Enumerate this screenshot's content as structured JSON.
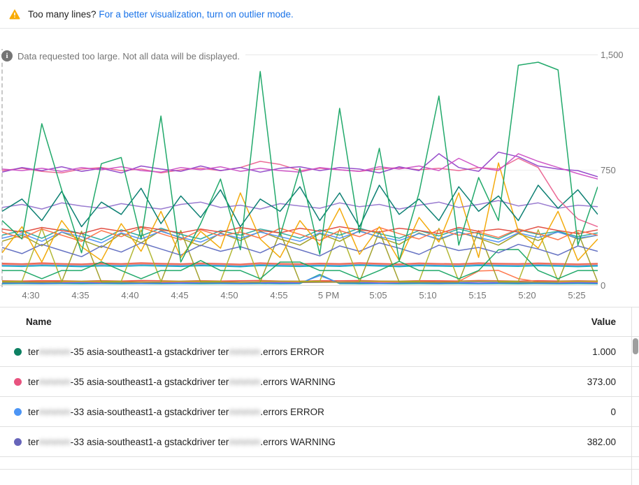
{
  "banner": {
    "warning_text": "Too many lines?",
    "link_text": "For a better visualization, turn on outlier mode.",
    "warning_color": "#F9AB00"
  },
  "chart": {
    "info_text": "Data requested too large. Not all data will be displayed.",
    "y_ticks": [
      {
        "label": "0",
        "value": 0
      },
      {
        "label": "750",
        "value": 750
      },
      {
        "label": "1,500",
        "value": 1500
      }
    ],
    "x_ticks": [
      "4:30",
      "4:35",
      "4:40",
      "4:45",
      "4:50",
      "4:55",
      "5 PM",
      "5:05",
      "5:10",
      "5:15",
      "5:20",
      "5:25"
    ]
  },
  "chart_data": {
    "type": "line",
    "title": "",
    "xlabel": "",
    "ylabel": "",
    "ylim": [
      0,
      1500
    ],
    "x_range": [
      "4:27",
      "5:27"
    ],
    "grid": true,
    "legend_position": "table-below",
    "series": [
      {
        "name": "",
        "color": "#5C85DE",
        "values": [
          132,
          128,
          134,
          130,
          127,
          133,
          129,
          135,
          131,
          128,
          133,
          130,
          126,
          134,
          130,
          128,
          132,
          129,
          135,
          131,
          127,
          133,
          130,
          128,
          134,
          131,
          129,
          133,
          130,
          127,
          131
        ]
      },
      {
        "name": "",
        "color": "#E5493D",
        "values": [
          142,
          138,
          144,
          140,
          137,
          143,
          139,
          145,
          141,
          138,
          143,
          140,
          136,
          144,
          140,
          138,
          142,
          139,
          145,
          141,
          137,
          143,
          140,
          138,
          144,
          141,
          139,
          143,
          140,
          137,
          141
        ]
      },
      {
        "name": "",
        "color": "#00ACC1",
        "values": [
          124,
          121,
          126,
          123,
          120,
          125,
          122,
          127,
          124,
          121,
          126,
          123,
          119,
          127,
          123,
          121,
          125,
          122,
          128,
          124,
          120,
          126,
          123,
          121,
          127,
          124,
          122,
          126,
          123,
          120,
          124
        ]
      },
      {
        "name": "",
        "color": "#FB8C6A",
        "values": [
          136,
          133,
          138,
          135,
          132,
          137,
          134,
          139,
          136,
          133,
          138,
          135,
          131,
          139,
          135,
          133,
          137,
          134,
          140,
          136,
          132,
          138,
          135,
          133,
          139,
          136,
          134,
          138,
          135,
          132,
          136
        ]
      },
      {
        "name": "",
        "color": "#7E57C2",
        "values": [
          18,
          18,
          17,
          19,
          18,
          17,
          19,
          18,
          17,
          18,
          19,
          17,
          18,
          19,
          18,
          17,
          18,
          19,
          17,
          18,
          19,
          18,
          17,
          18,
          19,
          18,
          17,
          19,
          18,
          17,
          18
        ]
      },
      {
        "name": "",
        "color": "#E5493D",
        "values": [
          28,
          27,
          29,
          28,
          26,
          29,
          27,
          30,
          28,
          26,
          29,
          27,
          28,
          30,
          27,
          26,
          29,
          28,
          30,
          27,
          26,
          29,
          28,
          27,
          30,
          28,
          26,
          29,
          27,
          28,
          27
        ]
      },
      {
        "name": "",
        "color": "#26A69A",
        "values": [
          8,
          9,
          8,
          9,
          8,
          9,
          8,
          9,
          8,
          9,
          8,
          9,
          8,
          9,
          8,
          9,
          70,
          9,
          8,
          9,
          8,
          9,
          8,
          9,
          8,
          9,
          8,
          9,
          8,
          9,
          8
        ]
      },
      {
        "name": "",
        "color": "#4285F4",
        "values": [
          13,
          14,
          11,
          13,
          15,
          12,
          14,
          11,
          13,
          12,
          15,
          13,
          11,
          14,
          12,
          13,
          62,
          14,
          14,
          11,
          13,
          15,
          12,
          14,
          11,
          13,
          15,
          13,
          12,
          14,
          12
        ]
      },
      {
        "name": "",
        "color": "#FF7043",
        "values": [
          22,
          20,
          24,
          21,
          23,
          20,
          24,
          22,
          20,
          23,
          21,
          24,
          20,
          22,
          24,
          21,
          23,
          20,
          24,
          22,
          20,
          23,
          21,
          24,
          92,
          96,
          42,
          22,
          20,
          23,
          21
        ]
      },
      {
        "name": "",
        "color": "#AFB42B",
        "values": [
          25,
          25,
          370,
          25,
          25,
          25,
          25,
          360,
          25,
          25,
          25,
          25,
          375,
          25,
          25,
          25,
          25,
          365,
          25,
          25,
          25,
          25,
          370,
          25,
          25,
          25,
          25,
          360,
          25,
          25,
          25
        ]
      },
      {
        "name": "",
        "color": "#9E9D24",
        "values": [
          20,
          20,
          20,
          20,
          350,
          20,
          20,
          20,
          20,
          355,
          20,
          20,
          20,
          20,
          345,
          20,
          20,
          20,
          20,
          350,
          20,
          20,
          20,
          20,
          355,
          20,
          20,
          20,
          20,
          345,
          20
        ]
      },
      {
        "name": "",
        "color": "#16A463",
        "values": [
          95,
          95,
          42,
          95,
          95,
          152,
          95,
          42,
          95,
          95,
          160,
          95,
          95,
          42,
          150,
          150,
          95,
          95,
          42,
          95,
          155,
          95,
          95,
          42,
          95,
          230,
          232,
          95,
          42,
          95,
          95
        ]
      },
      {
        "name": "",
        "color": "#9E9D24",
        "values": [
          285,
          325,
          255,
          345,
          295,
          245,
          335,
          275,
          355,
          305,
          255,
          340,
          290,
          350,
          300,
          260,
          335,
          285,
          355,
          310,
          265,
          340,
          295,
          345,
          305,
          260,
          335,
          290,
          350,
          300,
          325
        ]
      },
      {
        "name": "",
        "color": "#26A69A",
        "values": [
          325,
          355,
          305,
          365,
          335,
          295,
          360,
          320,
          370,
          330,
          300,
          355,
          325,
          365,
          340,
          305,
          360,
          325,
          370,
          335,
          305,
          355,
          320,
          365,
          335,
          300,
          360,
          330,
          350,
          315,
          340
        ]
      },
      {
        "name": "",
        "color": "#5E6BC0",
        "values": [
          245,
          205,
          265,
          225,
          185,
          255,
          215,
          275,
          235,
          195,
          260,
          220,
          250,
          210,
          270,
          230,
          190,
          255,
          220,
          275,
          240,
          200,
          260,
          225,
          245,
          210,
          265,
          235,
          195,
          255,
          220
        ]
      },
      {
        "name": "",
        "color": "#4E8DF5",
        "values": [
          305,
          335,
          285,
          345,
          315,
          275,
          340,
          300,
          350,
          310,
          280,
          335,
          305,
          345,
          315,
          285,
          340,
          305,
          350,
          315,
          290,
          335,
          300,
          345,
          310,
          280,
          340,
          310,
          345,
          305,
          325
        ]
      },
      {
        "name": "",
        "color": "#E0483C",
        "values": [
          365,
          345,
          375,
          355,
          335,
          370,
          350,
          380,
          360,
          340,
          365,
          345,
          375,
          355,
          340,
          370,
          350,
          380,
          360,
          345,
          370,
          355,
          335,
          375,
          350,
          365,
          345,
          380,
          355,
          335,
          360
        ]
      },
      {
        "name": "",
        "color": "#FF7043",
        "values": [
          345,
          305,
          365,
          325,
          285,
          355,
          315,
          375,
          335,
          295,
          360,
          320,
          345,
          305,
          370,
          330,
          290,
          355,
          315,
          375,
          335,
          300,
          360,
          325,
          345,
          310,
          365,
          335,
          295,
          355,
          325
        ]
      },
      {
        "name": "",
        "color": "#F2A600",
        "values": [
          210,
          380,
          150,
          420,
          250,
          160,
          400,
          220,
          480,
          180,
          350,
          240,
          600,
          300,
          180,
          420,
          260,
          500,
          200,
          380,
          160,
          440,
          280,
          600,
          180,
          795,
          350,
          240,
          480,
          160,
          300
        ]
      },
      {
        "name": "",
        "color": "#9575CD",
        "values": [
          505,
          525,
          495,
          535,
          515,
          500,
          530,
          510,
          495,
          525,
          540,
          505,
          520,
          495,
          530,
          515,
          500,
          535,
          510,
          525,
          495,
          520,
          540,
          505,
          525,
          550,
          515,
          535,
          500,
          520,
          510
        ]
      },
      {
        "name": "",
        "color": "#00796B",
        "values": [
          480,
          560,
          420,
          610,
          380,
          540,
          460,
          630,
          400,
          580,
          440,
          620,
          380,
          560,
          480,
          640,
          420,
          600,
          380,
          650,
          460,
          560,
          420,
          640,
          480,
          580,
          420,
          650,
          500,
          620,
          460
        ]
      },
      {
        "name": "",
        "color": "#EA6390",
        "values": [
          745,
          760,
          740,
          730,
          755,
          765,
          745,
          755,
          730,
          750,
          760,
          745,
          765,
          805,
          785,
          745,
          760,
          750,
          740,
          755,
          765,
          750,
          760,
          745,
          765,
          755,
          825,
          765,
          560,
          430,
          380
        ]
      },
      {
        "name": "",
        "color": "#9042C8",
        "values": [
          735,
          765,
          745,
          770,
          740,
          760,
          730,
          775,
          755,
          740,
          775,
          745,
          765,
          735,
          760,
          770,
          745,
          765,
          755,
          730,
          770,
          745,
          855,
          765,
          740,
          865,
          835,
          775,
          755,
          745,
          705
        ]
      },
      {
        "name": "",
        "color": "#CC4FC4",
        "values": [
          755,
          745,
          760,
          740,
          765,
          750,
          770,
          745,
          735,
          765,
          750,
          770,
          740,
          760,
          745,
          735,
          765,
          750,
          740,
          770,
          755,
          775,
          745,
          825,
          765,
          745,
          855,
          805,
          765,
          725,
          690
        ]
      },
      {
        "name": "",
        "color": "#16A463",
        "values": [
          420,
          300,
          1050,
          620,
          210,
          790,
          830,
          300,
          1100,
          150,
          400,
          690,
          230,
          1390,
          320,
          760,
          200,
          1150,
          340,
          890,
          160,
          600,
          1230,
          260,
          700,
          420,
          1430,
          1450,
          1400,
          260,
          640
        ]
      }
    ]
  },
  "table": {
    "name_header": "Name",
    "value_header": "Value",
    "rows": [
      {
        "dot_color": "#0D8062",
        "value": "1.000",
        "segments": [
          {
            "text": "ter",
            "blurred": false
          },
          {
            "text": "mmmm",
            "blurred": true
          },
          {
            "text": "-35 asia-southeast1-a gstackdriver ter",
            "blurred": false
          },
          {
            "text": "mmmm",
            "blurred": true
          },
          {
            "text": ".errors ERROR",
            "blurred": false
          }
        ]
      },
      {
        "dot_color": "#E8537F",
        "value": "373.00",
        "segments": [
          {
            "text": "ter",
            "blurred": false
          },
          {
            "text": "mmmm",
            "blurred": true
          },
          {
            "text": "-35 asia-southeast1-a gstackdriver ter",
            "blurred": false
          },
          {
            "text": "mmmm",
            "blurred": true
          },
          {
            "text": ".errors WARNING",
            "blurred": false
          }
        ]
      },
      {
        "dot_color": "#4C95F5",
        "value": "0",
        "segments": [
          {
            "text": "ter",
            "blurred": false
          },
          {
            "text": "mmmm",
            "blurred": true
          },
          {
            "text": "-33 asia-southeast1-a gstackdriver ter",
            "blurred": false
          },
          {
            "text": "mmmm",
            "blurred": true
          },
          {
            "text": ".errors ERROR",
            "blurred": false
          }
        ]
      },
      {
        "dot_color": "#6765BA",
        "value": "382.00",
        "segments": [
          {
            "text": "ter",
            "blurred": false
          },
          {
            "text": "mmmm",
            "blurred": true
          },
          {
            "text": "-33 asia-southeast1-a gstackdriver ter",
            "blurred": false
          },
          {
            "text": "mmmm",
            "blurred": true
          },
          {
            "text": ".errors WARNING",
            "blurred": false
          }
        ]
      }
    ]
  }
}
